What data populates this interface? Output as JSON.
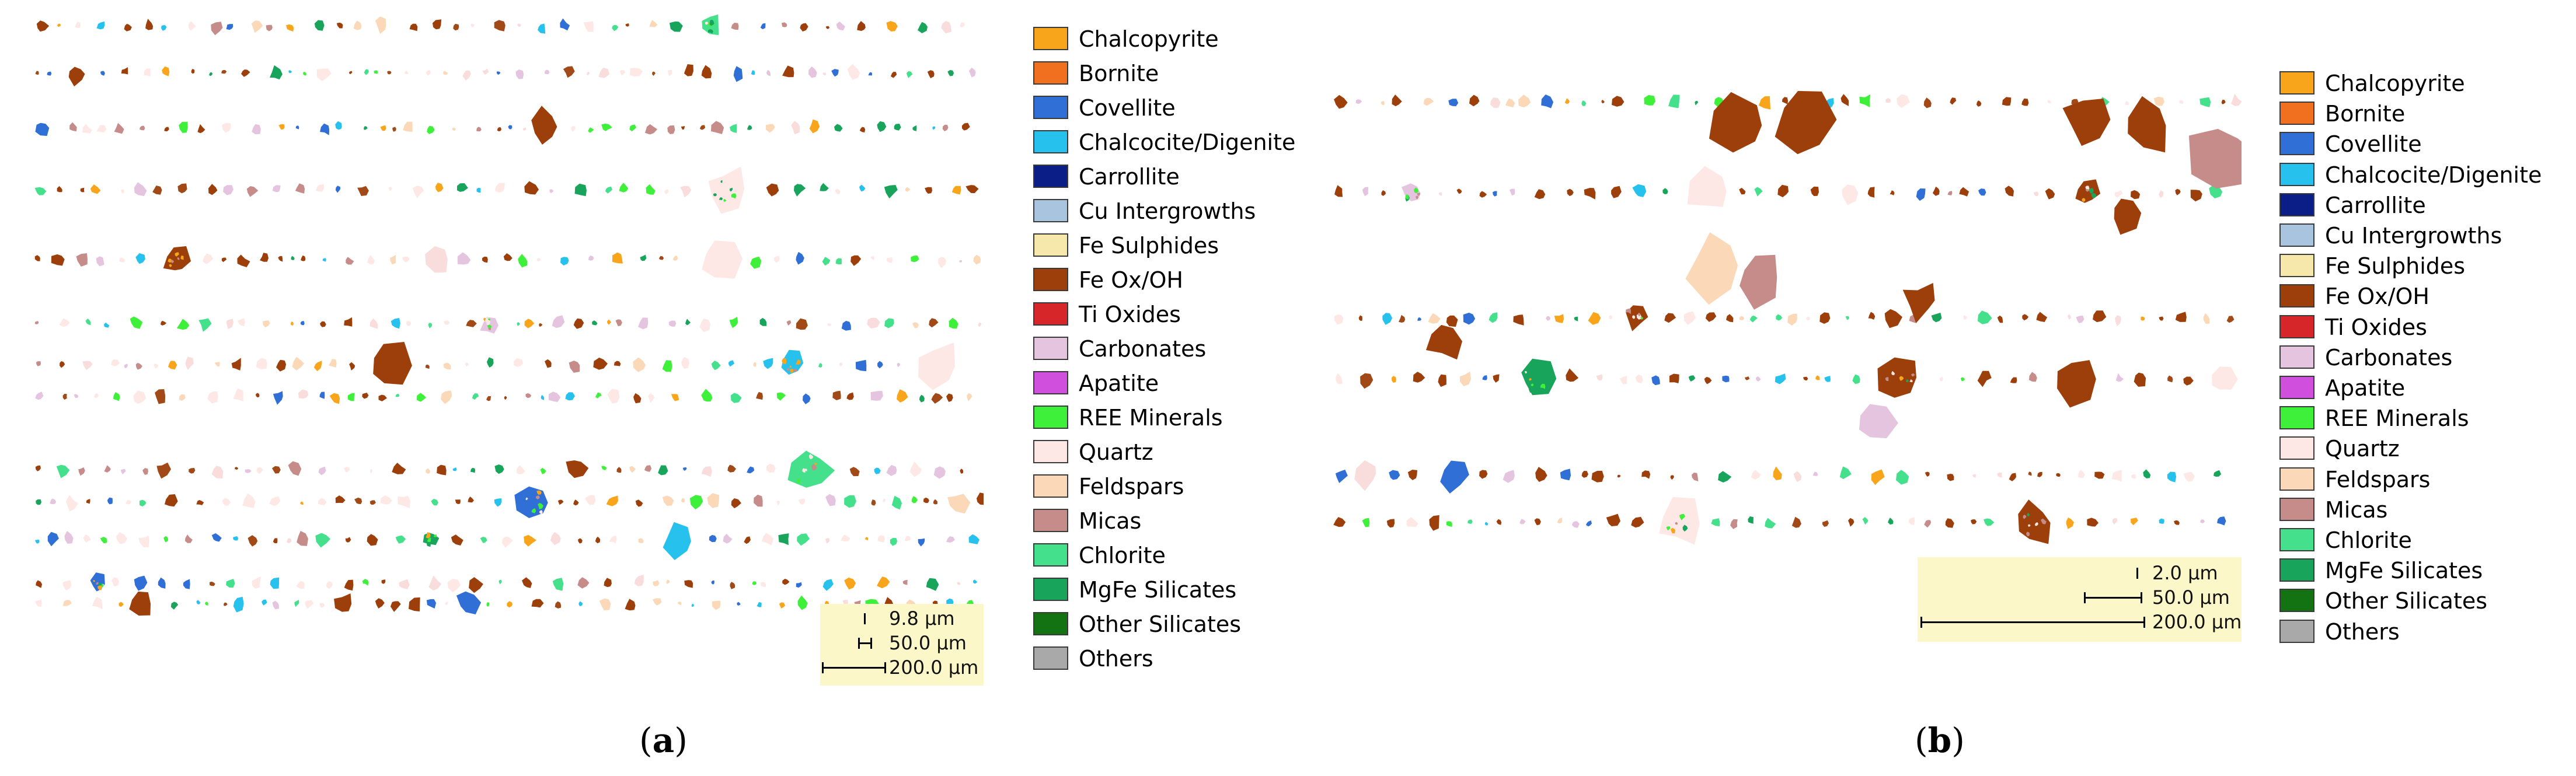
{
  "legend_items": [
    {
      "label": "Chalcopyrite",
      "color": "#f9a51b"
    },
    {
      "label": "Bornite",
      "color": "#f07020"
    },
    {
      "label": "Covellite",
      "color": "#2f6fd6"
    },
    {
      "label": "Chalcocite/Digenite",
      "color": "#27c1ee"
    },
    {
      "label": "Carrollite",
      "color": "#0b1d86"
    },
    {
      "label": "Cu Intergrowths",
      "color": "#a9c4df"
    },
    {
      "label": "Fe Sulphides",
      "color": "#f6e8aa"
    },
    {
      "label": "Fe Ox/OH",
      "color": "#9c3f0b"
    },
    {
      "label": "Ti Oxides",
      "color": "#d6262a"
    },
    {
      "label": "Carbonates",
      "color": "#e4c4de"
    },
    {
      "label": "Apatite",
      "color": "#d14fdd"
    },
    {
      "label": "REE Minerals",
      "color": "#3ef03a"
    },
    {
      "label": "Quartz",
      "color": "#fde8e6"
    },
    {
      "label": "Feldspars",
      "color": "#fad8b8"
    },
    {
      "label": "Micas",
      "color": "#c58c8a"
    },
    {
      "label": "Chlorite",
      "color": "#45e08b"
    },
    {
      "label": "MgFe Silicates",
      "color": "#19a45c"
    },
    {
      "label": "Other Silicates",
      "color": "#137313"
    },
    {
      "label": "Others",
      "color": "#a9a9a9"
    }
  ],
  "panel_a": {
    "caption_letter": "a",
    "scale": [
      "9.8 µm",
      "50.0 µm",
      "200.0 µm"
    ]
  },
  "panel_b": {
    "caption_letter": "b",
    "scale": [
      "2.0 µm",
      "50.0 µm",
      "200.0 µm"
    ]
  }
}
